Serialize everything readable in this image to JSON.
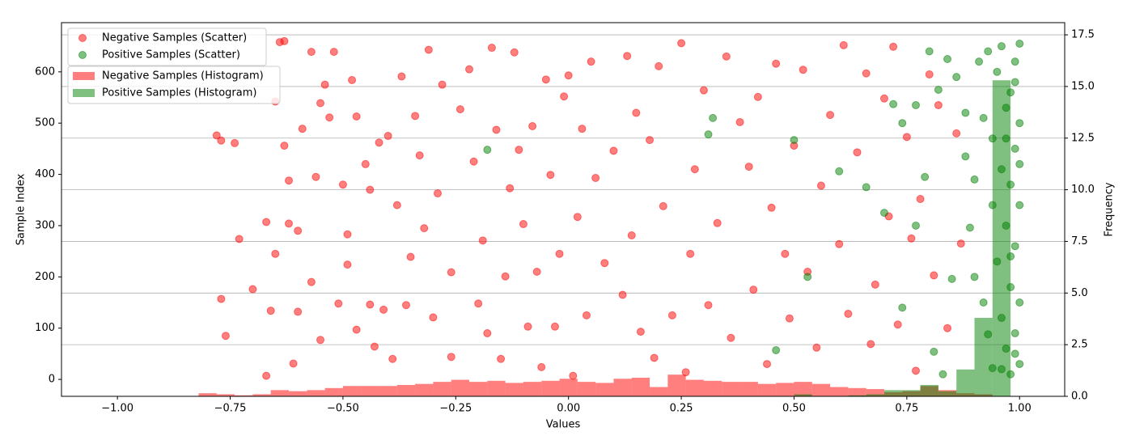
{
  "chart_data": {
    "type": "scatter+histogram",
    "x_label": "Values",
    "y_label": "Sample Index",
    "y2_label": "Frequency",
    "xlim": [
      -1.124,
      1.1
    ],
    "ylim": [
      -33,
      696
    ],
    "y2lim": [
      0,
      18.09
    ],
    "xticks": [
      {
        "value": -1,
        "label": "−1.00"
      },
      {
        "value": -0.75,
        "label": "−0.75"
      },
      {
        "value": -0.5,
        "label": "−0.50"
      },
      {
        "value": -0.25,
        "label": "−0.25"
      },
      {
        "value": 0,
        "label": "0.00"
      },
      {
        "value": 0.25,
        "label": "0.25"
      },
      {
        "value": 0.5,
        "label": "0.50"
      },
      {
        "value": 0.75,
        "label": "0.75"
      },
      {
        "value": 1,
        "label": "1.00"
      }
    ],
    "yticks": [
      0,
      100,
      200,
      300,
      400,
      500,
      600
    ],
    "y2ticks": [
      {
        "value": 0,
        "label": "0.0"
      },
      {
        "value": 2.5,
        "label": "2.5"
      },
      {
        "value": 5,
        "label": "5.0"
      },
      {
        "value": 7.5,
        "label": "7.5"
      },
      {
        "value": 10,
        "label": "10.0"
      },
      {
        "value": 12.5,
        "label": "12.5"
      },
      {
        "value": 15,
        "label": "15.0"
      },
      {
        "value": 17.5,
        "label": "17.5"
      }
    ],
    "grid": true,
    "legend": "upper left",
    "series": [
      {
        "name": "Negative Samples (Histogram)",
        "type": "histogram",
        "axis": "y2",
        "color": "#ff0000",
        "bins": [
          -0.82,
          -0.78,
          -0.74,
          -0.7,
          -0.66,
          -0.62,
          -0.58,
          -0.54,
          -0.5,
          -0.46,
          -0.42,
          -0.38,
          -0.34,
          -0.3,
          -0.26,
          -0.22,
          -0.18,
          -0.14,
          -0.1,
          -0.06,
          -0.02,
          0.02,
          0.06,
          0.1,
          0.14,
          0.18,
          0.22,
          0.26,
          0.3,
          0.34,
          0.38,
          0.42,
          0.46,
          0.5,
          0.54,
          0.58,
          0.62,
          0.66,
          0.7,
          0.74,
          0.78,
          0.82,
          0.86,
          0.9,
          0.94,
          0.98
        ],
        "values": [
          0.15,
          0.1,
          0.05,
          0.1,
          0.3,
          0.25,
          0.3,
          0.4,
          0.5,
          0.5,
          0.5,
          0.55,
          0.6,
          0.7,
          0.8,
          0.7,
          0.75,
          0.65,
          0.7,
          0.75,
          0.85,
          0.7,
          0.65,
          0.85,
          0.9,
          0.45,
          1.05,
          0.8,
          0.75,
          0.7,
          0.7,
          0.6,
          0.65,
          0.7,
          0.6,
          0.45,
          0.4,
          0.35,
          0.2,
          0.25,
          0.5,
          0.3,
          0.15,
          0.1,
          0
        ]
      },
      {
        "name": "Positive Samples (Histogram)",
        "type": "histogram",
        "axis": "y2",
        "color": "#008000",
        "bins": [
          -0.82,
          -0.78,
          -0.74,
          -0.7,
          -0.66,
          -0.62,
          -0.58,
          -0.54,
          -0.5,
          -0.46,
          -0.42,
          -0.38,
          -0.34,
          -0.3,
          -0.26,
          -0.22,
          -0.18,
          -0.14,
          -0.1,
          -0.06,
          -0.02,
          0.02,
          0.06,
          0.1,
          0.14,
          0.18,
          0.22,
          0.26,
          0.3,
          0.34,
          0.38,
          0.42,
          0.46,
          0.5,
          0.54,
          0.58,
          0.62,
          0.66,
          0.7,
          0.74,
          0.78,
          0.82,
          0.86,
          0.9,
          0.94,
          0.98
        ],
        "values": [
          0,
          0,
          0,
          0,
          0,
          0,
          0,
          0,
          0,
          0,
          0,
          0,
          0,
          0,
          0,
          0,
          0,
          0,
          0,
          0,
          0,
          0,
          0,
          0,
          0,
          0,
          0,
          0,
          0,
          0,
          0,
          0,
          0,
          0.1,
          0,
          0,
          0.05,
          0.1,
          0.3,
          0.3,
          0.55,
          0.25,
          1.3,
          3.8,
          15.3
        ]
      },
      {
        "name": "Negative Samples (Scatter)",
        "type": "scatter",
        "color": "#ff0000",
        "x": [
          -0.78,
          -0.77,
          -0.74,
          -0.73,
          -0.77,
          -0.76,
          -0.7,
          -0.67,
          -0.67,
          -0.66,
          -0.65,
          -0.65,
          -0.64,
          -0.63,
          -0.63,
          -0.62,
          -0.62,
          -0.61,
          -0.6,
          -0.6,
          -0.59,
          -0.57,
          -0.56,
          -0.57,
          -0.55,
          -0.55,
          -0.54,
          -0.53,
          -0.52,
          -0.51,
          -0.5,
          -0.49,
          -0.49,
          -0.48,
          -0.47,
          -0.47,
          -0.45,
          -0.44,
          -0.44,
          -0.43,
          -0.42,
          -0.41,
          -0.4,
          -0.39,
          -0.38,
          -0.37,
          -0.36,
          -0.35,
          -0.34,
          -0.33,
          -0.32,
          -0.31,
          -0.3,
          -0.29,
          -0.28,
          -0.26,
          -0.26,
          -0.24,
          -0.22,
          -0.21,
          -0.2,
          -0.19,
          -0.18,
          -0.17,
          -0.16,
          -0.15,
          -0.14,
          -0.13,
          -0.12,
          -0.11,
          -0.1,
          -0.09,
          -0.08,
          -0.07,
          -0.06,
          -0.05,
          -0.04,
          -0.03,
          -0.02,
          -0.01,
          0,
          0.01,
          0.02,
          0.03,
          0.04,
          0.05,
          0.06,
          0.08,
          0.1,
          0.12,
          0.13,
          0.14,
          0.15,
          0.16,
          0.18,
          0.19,
          0.2,
          0.21,
          0.23,
          0.25,
          0.26,
          0.27,
          0.28,
          0.3,
          0.31,
          0.33,
          0.35,
          0.36,
          0.38,
          0.4,
          0.41,
          0.42,
          0.44,
          0.45,
          0.46,
          0.48,
          0.49,
          0.5,
          0.52,
          0.53,
          0.55,
          0.56,
          0.58,
          0.6,
          0.61,
          0.62,
          0.64,
          0.66,
          0.67,
          0.68,
          0.7,
          0.71,
          0.72,
          0.73,
          0.75,
          0.76,
          0.77,
          0.78,
          0.8,
          0.81,
          0.82,
          0.84,
          0.86,
          0.87
        ],
        "values": [
          476,
          466,
          461,
          274,
          157,
          85,
          176,
          7,
          307,
          134,
          245,
          542,
          658,
          660,
          456,
          388,
          304,
          31,
          290,
          132,
          489,
          190,
          395,
          639,
          77,
          539,
          575,
          511,
          639,
          148,
          380,
          283,
          224,
          584,
          513,
          97,
          420,
          370,
          146,
          64,
          462,
          136,
          475,
          40,
          340,
          591,
          145,
          239,
          514,
          437,
          295,
          643,
          121,
          363,
          575,
          44,
          209,
          527,
          605,
          425,
          148,
          271,
          90,
          647,
          487,
          40,
          201,
          373,
          638,
          448,
          303,
          103,
          494,
          210,
          24,
          585,
          399,
          103,
          245,
          552,
          593,
          7,
          317,
          489,
          125,
          620,
          393,
          227,
          446,
          165,
          631,
          281,
          520,
          93,
          467,
          42,
          611,
          338,
          125,
          656,
          14,
          245,
          410,
          564,
          145,
          305,
          630,
          81,
          502,
          415,
          175,
          551,
          30,
          335,
          616,
          245,
          119,
          456,
          604,
          210,
          62,
          378,
          516,
          264,
          652,
          128,
          443,
          597,
          69,
          185,
          548,
          318,
          649,
          107,
          473,
          275,
          17,
          352,
          595,
          203,
          535,
          100,
          480,
          265
        ]
      },
      {
        "name": "Positive Samples (Scatter)",
        "type": "scatter",
        "color": "#008000",
        "x": [
          -0.18,
          0.32,
          0.31,
          0.6,
          0.5,
          0.46,
          0.53,
          0.72,
          0.74,
          0.77,
          0.77,
          0.8,
          0.82,
          0.84,
          0.86,
          0.88,
          0.88,
          0.89,
          0.9,
          0.9,
          0.91,
          0.92,
          0.92,
          0.93,
          0.93,
          0.94,
          0.94,
          0.94,
          0.95,
          0.95,
          0.96,
          0.96,
          0.96,
          0.97,
          0.97,
          0.97,
          0.98,
          0.98,
          0.98,
          0.98,
          0.99,
          0.99,
          0.99,
          0.99,
          1,
          1,
          1,
          1,
          1,
          0.99,
          1,
          0.98,
          0.97,
          0.96,
          0.99,
          0.83,
          0.81,
          0.7,
          0.66,
          0.74,
          0.79,
          0.85
        ],
        "values": [
          448,
          510,
          478,
          406,
          467,
          57,
          200,
          537,
          500,
          535,
          300,
          640,
          565,
          625,
          590,
          520,
          435,
          296,
          390,
          200,
          620,
          510,
          150,
          640,
          88,
          470,
          340,
          22,
          600,
          230,
          410,
          120,
          650,
          530,
          300,
          60,
          560,
          380,
          180,
          10,
          620,
          450,
          260,
          90,
          655,
          500,
          340,
          150,
          30,
          580,
          420,
          240,
          470,
          20,
          50,
          10,
          54,
          325,
          375,
          140,
          395,
          196
        ]
      }
    ]
  }
}
